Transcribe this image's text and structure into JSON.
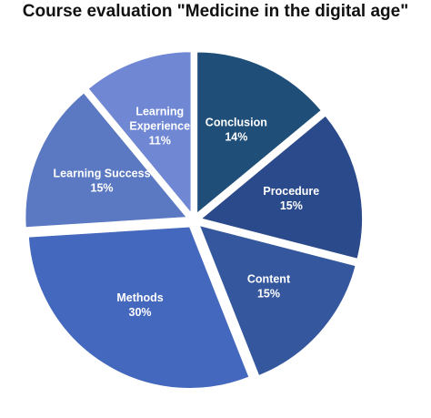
{
  "chart_data": {
    "type": "pie",
    "title": "Course evaluation \"Medicine in the digital age\"",
    "slices": [
      {
        "label": "Conclusion",
        "value": 14,
        "value_label": "14%",
        "color": "#1F4E79"
      },
      {
        "label": "Procedure",
        "value": 15,
        "value_label": "15%",
        "color": "#2B4A8B"
      },
      {
        "label": "Content",
        "value": 15,
        "value_label": "15%",
        "color": "#35579E"
      },
      {
        "label": "Methods",
        "value": 30,
        "value_label": "30%",
        "color": "#4468BD"
      },
      {
        "label": "Learning Success",
        "value": 15,
        "value_label": "15%",
        "color": "#5B79C2"
      },
      {
        "label": "Learning Experience",
        "value": 11,
        "value_label": "11%",
        "color": "#7088D4"
      }
    ],
    "exploded": true
  }
}
